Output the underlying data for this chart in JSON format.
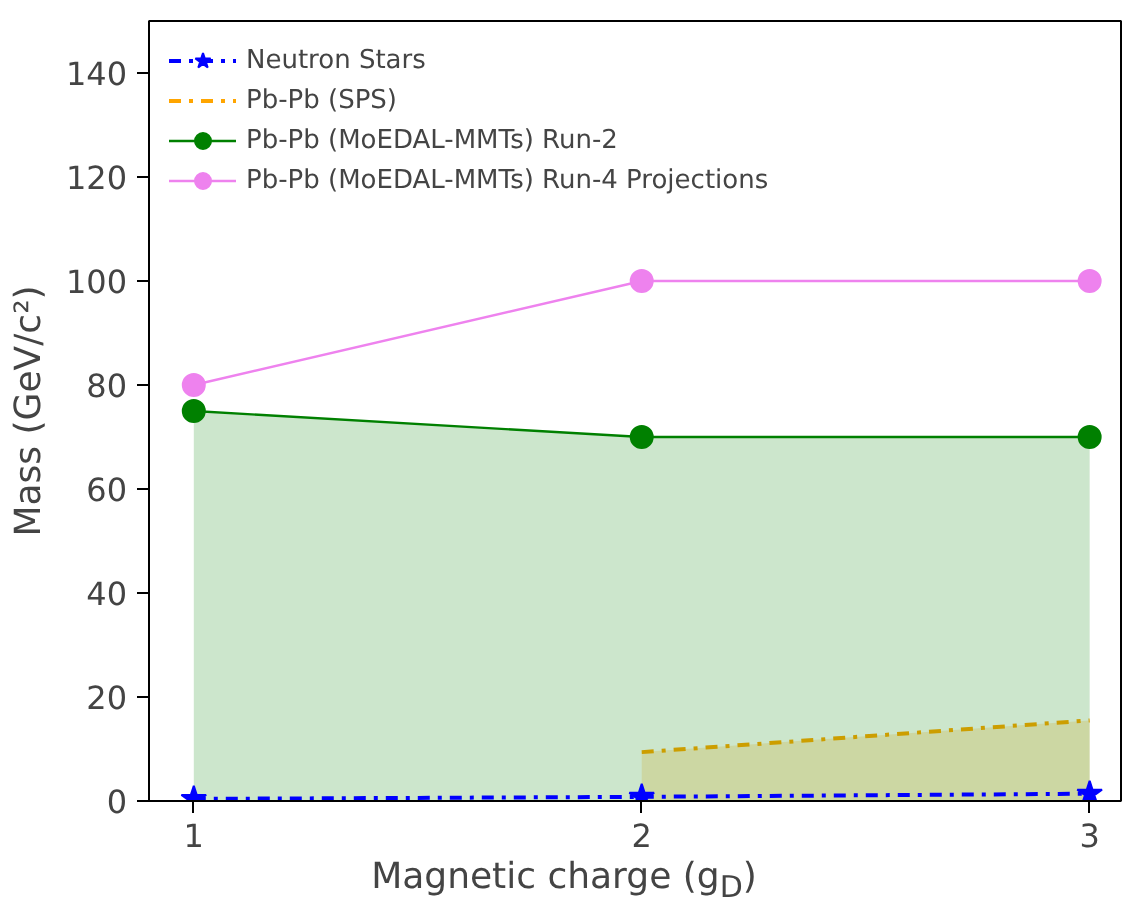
{
  "chart_data": {
    "type": "line",
    "xlabel": "Magnetic charge (g$_{D}$)",
    "ylabel": "Mass (GeV/c²)",
    "x": [
      1,
      2,
      3
    ],
    "series": [
      {
        "name": "Neutron Stars",
        "color": "#0000ff",
        "values": [
          0.4,
          0.8,
          1.4
        ],
        "marker": "star",
        "line_style": "dashed"
      },
      {
        "name": "Pb-Pb (SPS)",
        "color": "#ffa500",
        "type": "area",
        "x": [
          2,
          3
        ],
        "values": [
          9.4,
          15.5
        ],
        "marker": "none",
        "line_style": "dashed"
      },
      {
        "name": "Pb-Pb (MoEDAL-MMTs) Run-2",
        "color": "#008000",
        "type": "area",
        "values": [
          75,
          70,
          70
        ],
        "marker": "circle",
        "line_style": "solid"
      },
      {
        "name": "Pb-Pb (MoEDAL-MMTs) Run-4 Projections",
        "color": "#ee82ee",
        "values": [
          80,
          100,
          100
        ],
        "marker": "circle",
        "line_style": "solid"
      }
    ],
    "xlim": [
      0.9,
      3.07
    ],
    "ylim": [
      0,
      150
    ],
    "xticks": [
      1,
      2,
      3
    ],
    "yticks": [
      0,
      20,
      40,
      60,
      80,
      100,
      120,
      140
    ],
    "grid": false,
    "legend": "top left"
  }
}
